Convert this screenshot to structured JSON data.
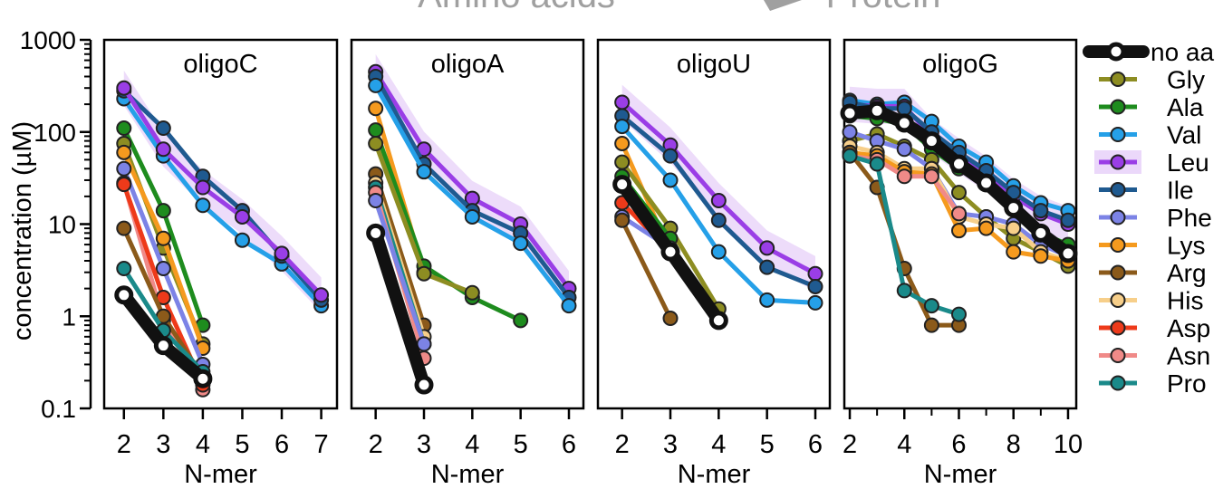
{
  "header_partial": [
    "Amino acids",
    "Protein"
  ],
  "ylabel": "concentration (µM)",
  "xlabel": "N-mer",
  "y_ticks": [
    "1000",
    "100",
    "10",
    "1",
    "0.1"
  ],
  "legend": [
    {
      "name": "no aa",
      "color": "#111111",
      "fill": "#ffffff",
      "thick": true
    },
    {
      "name": "Gly",
      "color": "#8d8d22",
      "fill": "#8d8d22"
    },
    {
      "name": "Ala",
      "color": "#1e8c1e",
      "fill": "#1e8c1e"
    },
    {
      "name": "Val",
      "color": "#25a0e8",
      "fill": "#25a0e8"
    },
    {
      "name": "Leu",
      "color": "#9a3ee6",
      "fill": "#9a3ee6",
      "band": true
    },
    {
      "name": "Ile",
      "color": "#1f5a90",
      "fill": "#1f5a90"
    },
    {
      "name": "Phe",
      "color": "#7c83e6",
      "fill": "#7c83e6"
    },
    {
      "name": "Lys",
      "color": "#f59a1e",
      "fill": "#f59a1e"
    },
    {
      "name": "Arg",
      "color": "#8b5a1a",
      "fill": "#8b5a1a"
    },
    {
      "name": "His",
      "color": "#f7cf8a",
      "fill": "#f7cf8a"
    },
    {
      "name": "Asp",
      "color": "#ee3a1a",
      "fill": "#ee3a1a"
    },
    {
      "name": "Asn",
      "color": "#f08a88",
      "fill": "#f08a88"
    },
    {
      "name": "Pro",
      "color": "#1a8a8a",
      "fill": "#1a8a8a"
    }
  ],
  "chart_data": [
    {
      "type": "line",
      "title": "oligoC",
      "xlabel": "N-mer",
      "ylabel": "concentration (µM)",
      "yscale": "log",
      "ylim": [
        0.1,
        1000
      ],
      "xlim": [
        1.5,
        7.4
      ],
      "x_ticks": [
        2,
        3,
        4,
        5,
        6,
        7
      ],
      "series": [
        {
          "name": "Val",
          "x": [
            2,
            3,
            4,
            5,
            6,
            7
          ],
          "y": [
            230,
            55,
            16,
            6.7,
            3.7,
            1.3
          ]
        },
        {
          "name": "Ile",
          "x": [
            2,
            3,
            4,
            5,
            6,
            7
          ],
          "y": [
            280,
            110,
            33,
            14,
            4.5,
            1.5
          ]
        },
        {
          "name": "Leu",
          "x": [
            2,
            3,
            4,
            5,
            6,
            7
          ],
          "y": [
            300,
            65,
            25,
            12,
            4.8,
            1.7
          ]
        },
        {
          "name": "Ala",
          "x": [
            2,
            3,
            4
          ],
          "y": [
            110,
            14,
            0.8
          ]
        },
        {
          "name": "Gly",
          "x": [
            2,
            3,
            4
          ],
          "y": [
            75,
            5.5,
            0.5
          ]
        },
        {
          "name": "Lys",
          "x": [
            2,
            3,
            4
          ],
          "y": [
            60,
            7,
            0.45
          ]
        },
        {
          "name": "Phe",
          "x": [
            2,
            3,
            4
          ],
          "y": [
            40,
            3.3,
            0.3
          ]
        },
        {
          "name": "Asn",
          "x": [
            2,
            3,
            4
          ],
          "y": [
            28,
            0.9,
            0.16
          ]
        },
        {
          "name": "Asp",
          "x": [
            2,
            3,
            4
          ],
          "y": [
            27,
            1.6,
            0.18
          ]
        },
        {
          "name": "Arg",
          "x": [
            2,
            3,
            4
          ],
          "y": [
            9,
            1.0,
            0.22
          ]
        },
        {
          "name": "Pro",
          "x": [
            2,
            3,
            4
          ],
          "y": [
            3.3,
            0.7,
            0.25
          ]
        },
        {
          "name": "no aa",
          "x": [
            2,
            3,
            4
          ],
          "y": [
            1.7,
            0.48,
            0.21
          ]
        }
      ]
    },
    {
      "type": "line",
      "title": "oligoA",
      "xlabel": "N-mer",
      "ylabel": "",
      "yscale": "log",
      "ylim": [
        0.1,
        1000
      ],
      "xlim": [
        1.5,
        6.3
      ],
      "x_ticks": [
        2,
        3,
        4,
        5,
        6
      ],
      "series": [
        {
          "name": "Leu",
          "x": [
            2,
            3,
            4,
            5,
            6
          ],
          "y": [
            450,
            65,
            19,
            10,
            2.0
          ]
        },
        {
          "name": "Ile",
          "x": [
            2,
            3,
            4,
            5,
            6
          ],
          "y": [
            400,
            45,
            14,
            8,
            1.6
          ]
        },
        {
          "name": "Val",
          "x": [
            2,
            3,
            4,
            5,
            6
          ],
          "y": [
            320,
            37,
            12,
            6.2,
            1.3
          ]
        },
        {
          "name": "Lys",
          "x": [
            2,
            3
          ],
          "y": [
            180,
            3.0
          ]
        },
        {
          "name": "Ala",
          "x": [
            2,
            3,
            4,
            5
          ],
          "y": [
            105,
            3.5,
            1.6,
            0.9
          ]
        },
        {
          "name": "Gly",
          "x": [
            2,
            3,
            4
          ],
          "y": [
            75,
            2.9,
            1.8
          ]
        },
        {
          "name": "Arg",
          "x": [
            2,
            3
          ],
          "y": [
            35,
            0.8
          ]
        },
        {
          "name": "His",
          "x": [
            2,
            3
          ],
          "y": [
            28,
            0.6
          ]
        },
        {
          "name": "Pro",
          "x": [
            2,
            3
          ],
          "y": [
            25,
            0.5
          ]
        },
        {
          "name": "Asn",
          "x": [
            2,
            3
          ],
          "y": [
            22,
            0.35
          ]
        },
        {
          "name": "Phe",
          "x": [
            2,
            3
          ],
          "y": [
            18,
            0.5
          ]
        },
        {
          "name": "no aa",
          "x": [
            2,
            3
          ],
          "y": [
            8,
            0.18
          ]
        }
      ]
    },
    {
      "type": "line",
      "title": "oligoU",
      "xlabel": "N-mer",
      "ylabel": "",
      "yscale": "log",
      "ylim": [
        0.1,
        1000
      ],
      "xlim": [
        1.5,
        6.3
      ],
      "x_ticks": [
        2,
        3,
        4,
        5,
        6
      ],
      "series": [
        {
          "name": "Leu",
          "x": [
            2,
            3,
            4,
            5,
            6
          ],
          "y": [
            210,
            72,
            18,
            5.5,
            2.9
          ]
        },
        {
          "name": "Ile",
          "x": [
            2,
            3,
            4,
            5,
            6
          ],
          "y": [
            150,
            55,
            11,
            3.4,
            2.1
          ]
        },
        {
          "name": "Val",
          "x": [
            2,
            3,
            4,
            5,
            6
          ],
          "y": [
            115,
            30,
            5,
            1.5,
            1.4
          ]
        },
        {
          "name": "Lys",
          "x": [
            2,
            3
          ],
          "y": [
            75,
            5
          ]
        },
        {
          "name": "Gly",
          "x": [
            2,
            3,
            4
          ],
          "y": [
            47,
            9,
            1.2
          ]
        },
        {
          "name": "Ala",
          "x": [
            2,
            3
          ],
          "y": [
            33,
            7
          ]
        },
        {
          "name": "Asp",
          "x": [
            2,
            3
          ],
          "y": [
            17,
            5
          ]
        },
        {
          "name": "Phe",
          "x": [
            2,
            3
          ],
          "y": [
            12,
            5.5
          ]
        },
        {
          "name": "Arg",
          "x": [
            2,
            3
          ],
          "y": [
            11,
            0.95
          ]
        },
        {
          "name": "no aa",
          "x": [
            2,
            3,
            4
          ],
          "y": [
            27,
            5,
            0.9
          ]
        }
      ]
    },
    {
      "type": "line",
      "title": "oligoG",
      "xlabel": "N-mer",
      "ylabel": "",
      "yscale": "log",
      "ylim": [
        0.1,
        1000
      ],
      "xlim": [
        1.8,
        10.3
      ],
      "x_ticks": [
        2,
        4,
        6,
        8,
        10
      ],
      "series": [
        {
          "name": "Val",
          "x": [
            2,
            3,
            4,
            5,
            6,
            7,
            8,
            9,
            10
          ],
          "y": [
            220,
            200,
            210,
            130,
            70,
            47,
            26,
            17,
            14
          ]
        },
        {
          "name": "Leu",
          "x": [
            2,
            3,
            4,
            5,
            6,
            7,
            8,
            9,
            10
          ],
          "y": [
            200,
            190,
            190,
            90,
            55,
            35,
            20,
            13,
            10
          ]
        },
        {
          "name": "Ile",
          "x": [
            2,
            3,
            4,
            5,
            6,
            7,
            8,
            9,
            10
          ],
          "y": [
            210,
            180,
            180,
            100,
            60,
            38,
            22,
            14,
            11
          ]
        },
        {
          "name": "Ala",
          "x": [
            2,
            3,
            4,
            5,
            6,
            7,
            8,
            9,
            10
          ],
          "y": [
            150,
            140,
            120,
            65,
            40,
            28,
            15,
            8,
            6
          ]
        },
        {
          "name": "Gly",
          "x": [
            2,
            3,
            4,
            5,
            6,
            7,
            8,
            9,
            10
          ],
          "y": [
            80,
            95,
            70,
            50,
            22,
            12,
            7,
            5,
            3.5
          ]
        },
        {
          "name": "Phe",
          "x": [
            2,
            3,
            4,
            5,
            6,
            7,
            8,
            9,
            10
          ],
          "y": [
            100,
            80,
            65,
            40,
            13,
            12,
            10,
            6,
            4.5
          ]
        },
        {
          "name": "His",
          "x": [
            2,
            3,
            4,
            5,
            6,
            7,
            8,
            9,
            10
          ],
          "y": [
            70,
            60,
            40,
            40,
            12,
            10,
            9,
            5,
            4
          ]
        },
        {
          "name": "Lys",
          "x": [
            2,
            3,
            4,
            5,
            6,
            7,
            8,
            9,
            10
          ],
          "y": [
            60,
            55,
            37,
            35,
            8.5,
            9,
            5,
            4.5,
            4
          ]
        },
        {
          "name": "Asn",
          "x": [
            2,
            3,
            4,
            5,
            6
          ],
          "y": [
            55,
            50,
            33,
            33,
            13
          ]
        },
        {
          "name": "Arg",
          "x": [
            2,
            3,
            4,
            5,
            6
          ],
          "y": [
            60,
            25,
            3.3,
            0.8,
            0.8
          ]
        },
        {
          "name": "Pro",
          "x": [
            2,
            3,
            4,
            5,
            6
          ],
          "y": [
            55,
            45,
            1.9,
            1.3,
            1.05
          ]
        },
        {
          "name": "no aa",
          "x": [
            2,
            3,
            4,
            5,
            6,
            7,
            8,
            9,
            10
          ],
          "y": [
            160,
            170,
            125,
            80,
            45,
            28,
            15,
            8,
            4.8
          ]
        }
      ]
    }
  ]
}
